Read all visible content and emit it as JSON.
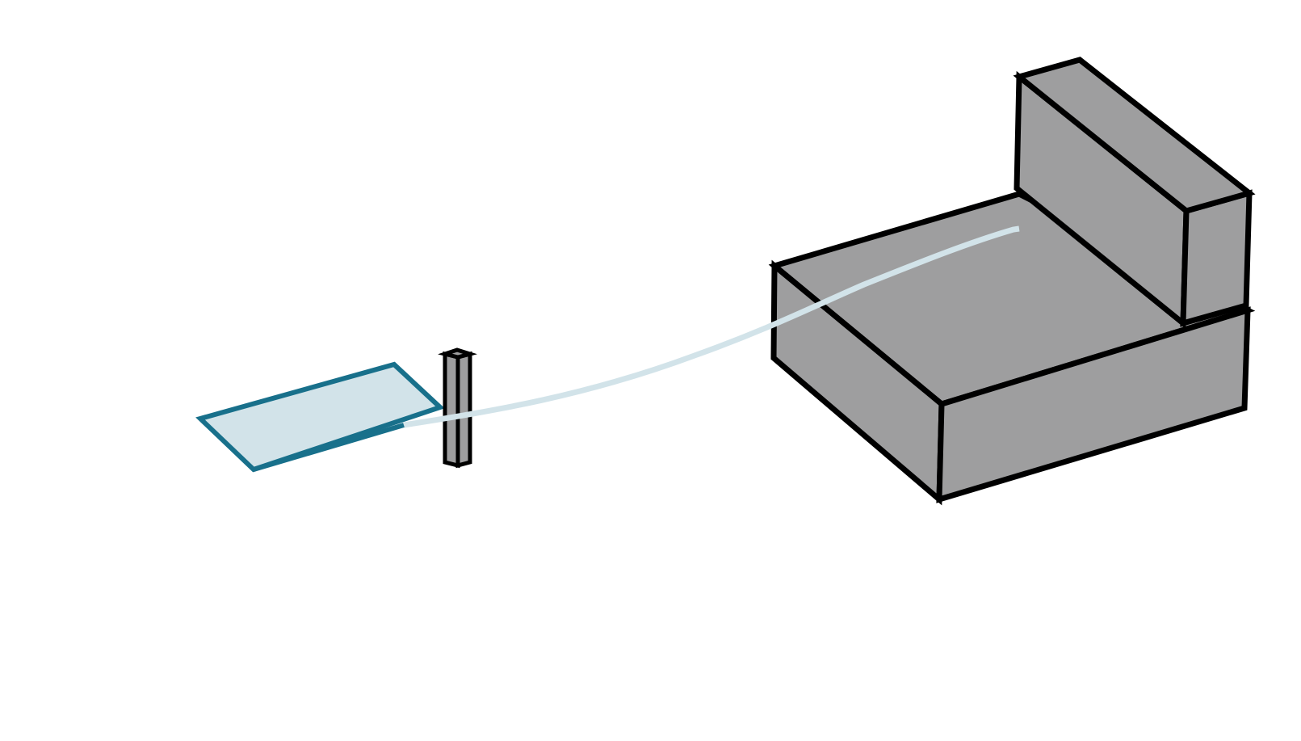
{
  "diagram": {
    "objects": [
      {
        "id": "plate",
        "kind": "flat-panel"
      },
      {
        "id": "pillar",
        "kind": "thin-vertical-post"
      },
      {
        "id": "base-block",
        "kind": "box"
      },
      {
        "id": "back-block",
        "kind": "box-on-box"
      }
    ],
    "connector": {
      "from": "plate",
      "to": "back-block",
      "kind": "curve"
    }
  },
  "colors": {
    "solid_fill": "#9e9e9f",
    "edge": "#000000",
    "plate_fill": "#d2e3e9",
    "plate_stroke": "#18708b",
    "trajectory": "#d2e3e9",
    "background": "#ffffff"
  }
}
